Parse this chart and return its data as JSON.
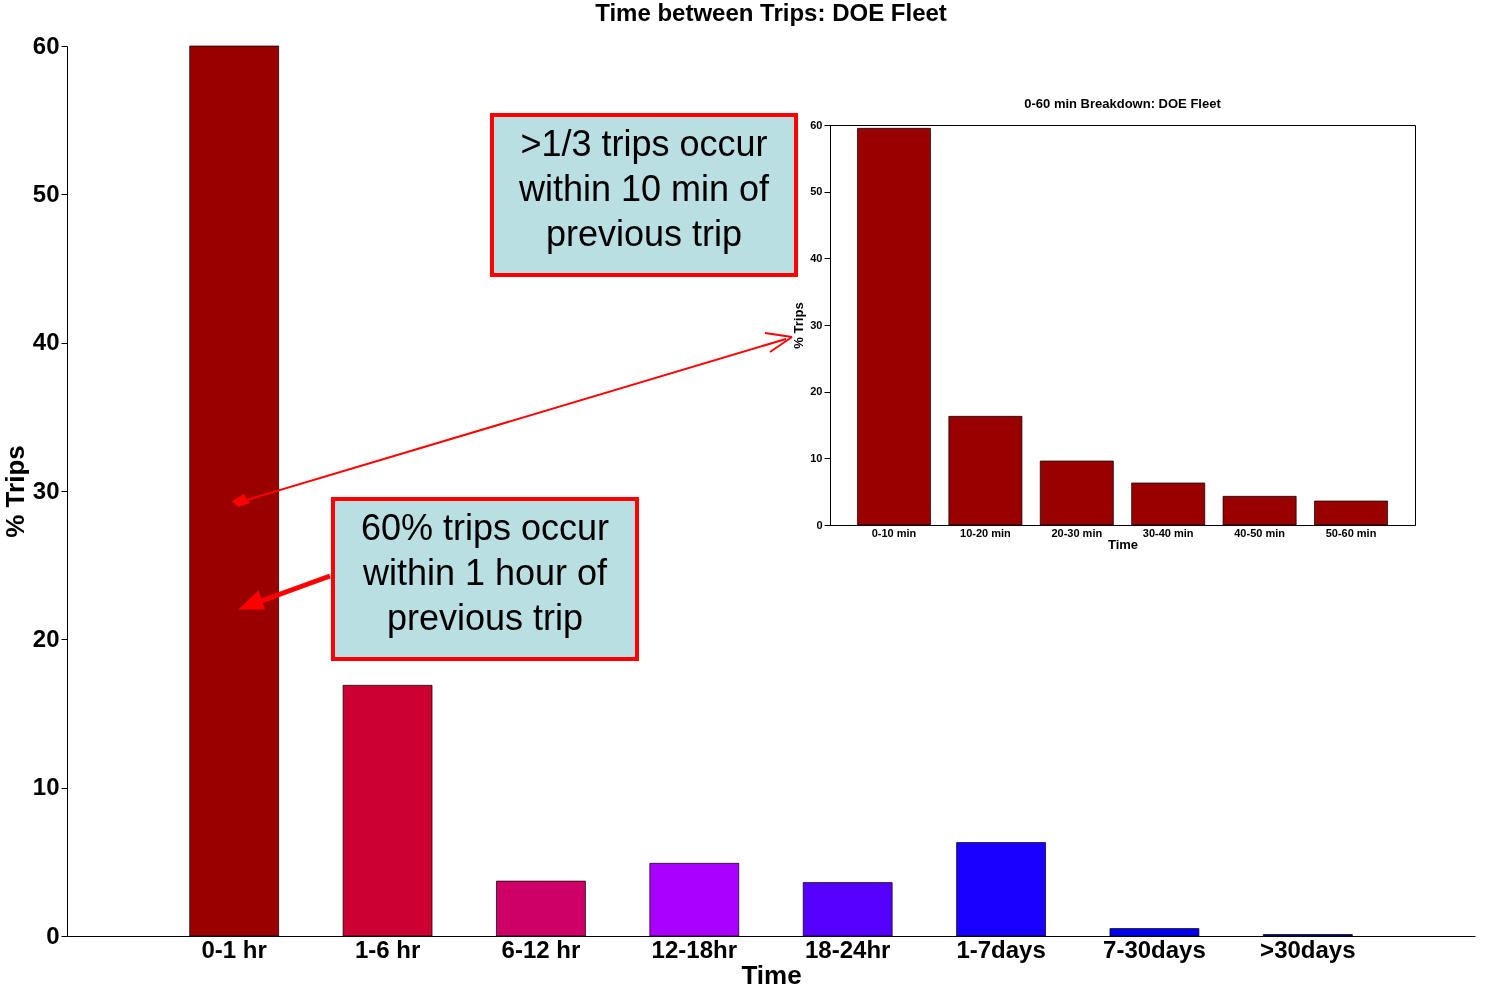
{
  "chart_data": [
    {
      "type": "bar",
      "title": "Time between Trips: DOE Fleet",
      "xlabel": "Time",
      "ylabel": "% Trips",
      "categories": [
        "0-1 hr",
        "1-6 hr",
        "6-12 hr",
        "12-18hr",
        "18-24hr",
        "1-7days",
        "7-30days",
        ">30days"
      ],
      "values": [
        60,
        16.9,
        3.7,
        4.9,
        3.6,
        6.3,
        0.5,
        0.1
      ],
      "colors": [
        "#990000",
        "#cc0033",
        "#cc0066",
        "#aa00ff",
        "#5500ff",
        "#1a00ff",
        "#0000ee",
        "#0000aa"
      ],
      "ylim": [
        0,
        60
      ],
      "yticks": [
        0,
        10,
        20,
        30,
        40,
        50,
        60
      ],
      "grid": false,
      "annotations": [
        ">1/3 trips occur within 10 min of previous trip",
        "60% trips occur within 1 hour of previous trip"
      ]
    },
    {
      "type": "bar",
      "title": "0-60 min Breakdown: DOE Fleet",
      "xlabel": "Time",
      "ylabel": "% Trips",
      "categories": [
        "0-10 min",
        "10-20 min",
        "20-30 min",
        "30-40 min",
        "40-50 min",
        "50-60 min"
      ],
      "values": [
        59.5,
        16.3,
        9.6,
        6.3,
        4.3,
        3.6
      ],
      "colors": [
        "#990000",
        "#990000",
        "#990000",
        "#990000",
        "#990000",
        "#990000"
      ],
      "ylim": [
        0,
        60
      ],
      "yticks": [
        0,
        10,
        20,
        30,
        40,
        50,
        60
      ],
      "grid": false
    }
  ]
}
